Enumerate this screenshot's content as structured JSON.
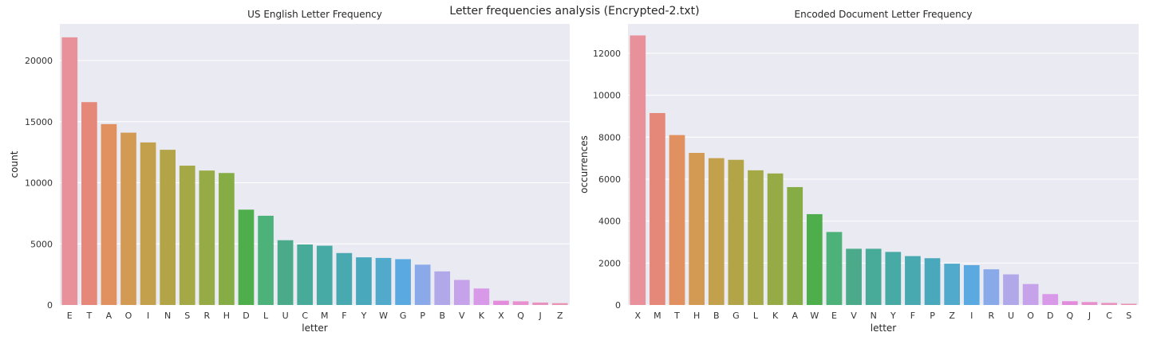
{
  "figure": {
    "suptitle": "Letter frequencies analysis (Encrypted-2.txt)"
  },
  "chart_data": [
    {
      "type": "bar",
      "title": "US English Letter Frequency",
      "xlabel": "letter",
      "ylabel": "count",
      "ylim": [
        0,
        23000
      ],
      "yticks": [
        0,
        5000,
        10000,
        15000,
        20000
      ],
      "grid": "horizontal",
      "categories": [
        "E",
        "T",
        "A",
        "O",
        "I",
        "N",
        "S",
        "R",
        "H",
        "D",
        "L",
        "U",
        "C",
        "M",
        "F",
        "Y",
        "W",
        "G",
        "P",
        "B",
        "V",
        "K",
        "X",
        "Q",
        "J",
        "Z"
      ],
      "values": [
        21900,
        16600,
        14800,
        14100,
        13300,
        12700,
        11400,
        11000,
        10800,
        7800,
        7300,
        5300,
        4950,
        4850,
        4250,
        3900,
        3850,
        3750,
        3300,
        2750,
        2050,
        1350,
        350,
        300,
        200,
        150
      ],
      "colors": [
        "#e8919a",
        "#e5887a",
        "#e19160",
        "#d29a52",
        "#c3a04b",
        "#b3a447",
        "#a4a845",
        "#96aa45",
        "#85ac45",
        "#4eae4b",
        "#4db27a",
        "#4aaa8a",
        "#48aa98",
        "#47aaa4",
        "#48a9b0",
        "#4aa8bc",
        "#51a9cc",
        "#5aa9e0",
        "#8aa9e8",
        "#b0a8e8",
        "#c6a2ea",
        "#d89ae8",
        "#e48cdc",
        "#e790cd",
        "#e991bf",
        "#ea93b0"
      ]
    },
    {
      "type": "bar",
      "title": "Encoded Document Letter Frequency",
      "xlabel": "letter",
      "ylabel": "occurrences",
      "ylim": [
        0,
        13400
      ],
      "yticks": [
        0,
        2000,
        4000,
        6000,
        8000,
        10000,
        12000
      ],
      "grid": "horizontal",
      "categories": [
        "X",
        "M",
        "T",
        "H",
        "B",
        "G",
        "L",
        "K",
        "A",
        "W",
        "E",
        "V",
        "N",
        "Y",
        "F",
        "P",
        "Z",
        "I",
        "R",
        "U",
        "O",
        "D",
        "Q",
        "J",
        "C",
        "S"
      ],
      "values": [
        12850,
        9150,
        8100,
        7250,
        7000,
        6920,
        6420,
        6270,
        5620,
        4330,
        3480,
        2680,
        2680,
        2530,
        2330,
        2230,
        1970,
        1900,
        1700,
        1460,
        1000,
        520,
        180,
        140,
        100,
        60
      ],
      "colors": [
        "#e8919a",
        "#e5887a",
        "#e19160",
        "#d29a52",
        "#c3a04b",
        "#b3a447",
        "#a4a845",
        "#96aa45",
        "#85ac45",
        "#4eae4b",
        "#4db27a",
        "#4aaa8a",
        "#48aa98",
        "#47aaa4",
        "#48a9b0",
        "#4aa8bc",
        "#51a9cc",
        "#5aa9e0",
        "#8aa9e8",
        "#b0a8e8",
        "#c6a2ea",
        "#d89ae8",
        "#e48cdc",
        "#e790cd",
        "#e991bf",
        "#ea93b0"
      ]
    }
  ],
  "style": {
    "axes_bg": "#eaeaf2",
    "grid_color": "#ffffff",
    "text_color": "#262626",
    "tick_color": "#333333"
  }
}
